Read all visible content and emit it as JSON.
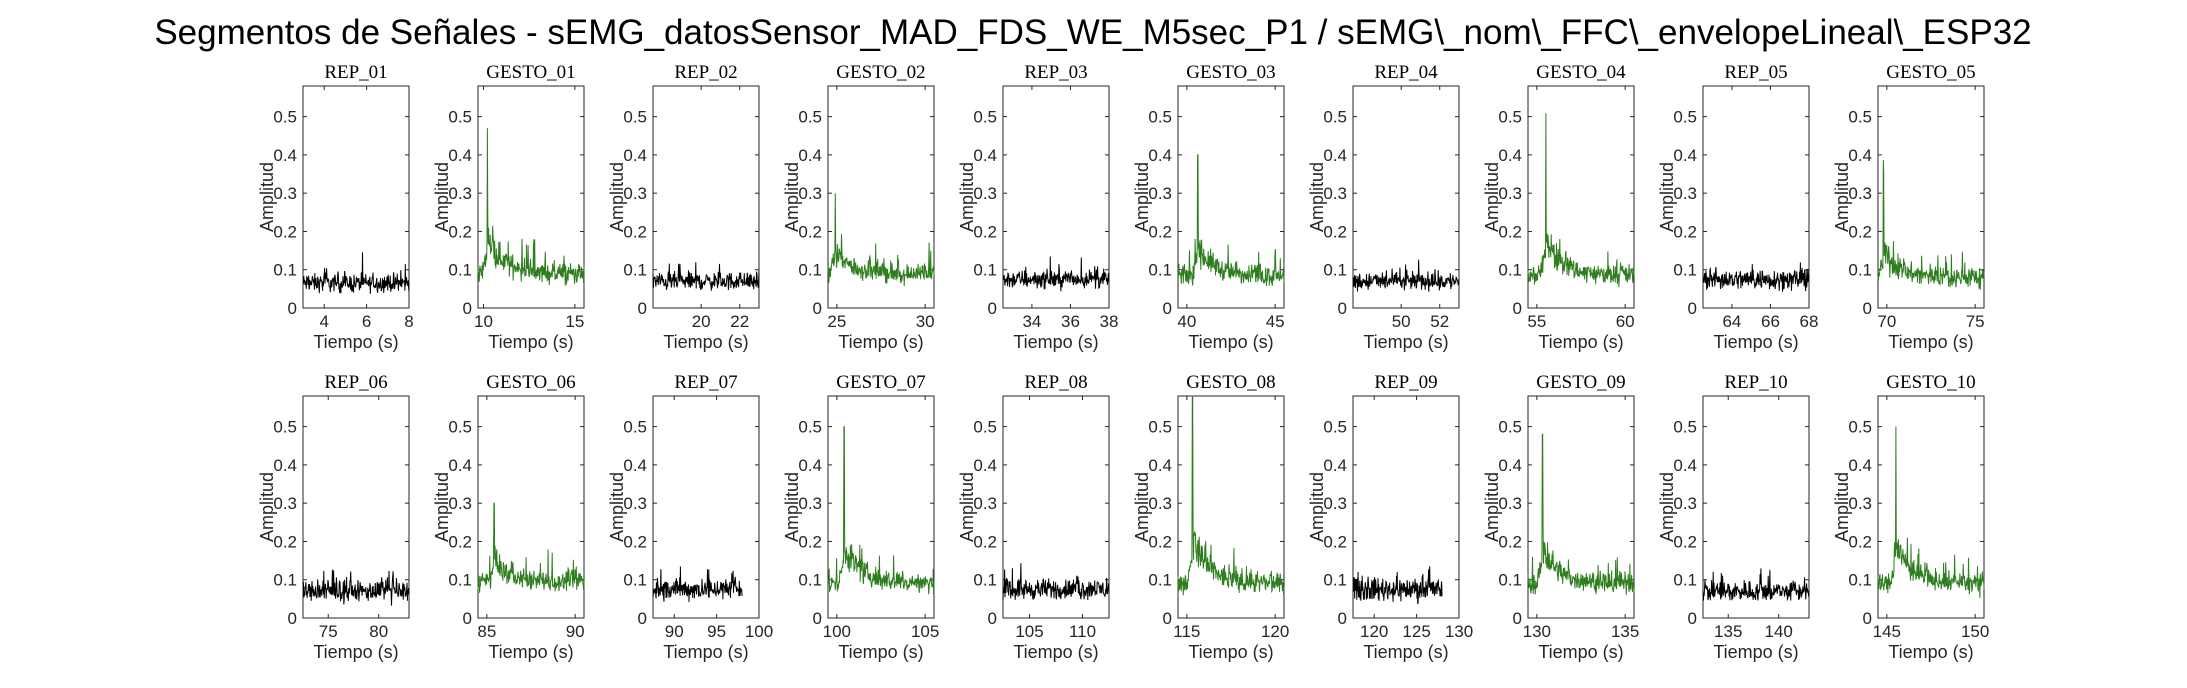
{
  "title": "Segmentos de Señales - sEMG_datosSensor_MAD_FDS_WE_M5sec_P1 / sEMG\\_nom\\_FFC\\_envelopeLineal\\_ESP32",
  "colors": {
    "rep": "#000000",
    "gesto": "#2e7d1e"
  },
  "chart_data": [
    {
      "type": "line",
      "title": "REP_01",
      "xlabel": "Tiempo (s)",
      "ylabel": "Amplitud",
      "ylim": [
        0,
        0.58
      ],
      "yticks": [
        0,
        0.1,
        0.2,
        0.3,
        0.4,
        0.5
      ],
      "xlim": [
        3,
        8
      ],
      "xticks": [
        4,
        6,
        8
      ],
      "color": "rep",
      "series": [
        {
          "kind": "rest",
          "x_range": [
            3,
            8
          ],
          "base": 0.065,
          "noise": 0.035
        }
      ]
    },
    {
      "type": "line",
      "title": "GESTO_01",
      "xlabel": "Tiempo (s)",
      "ylabel": "Amplitud",
      "ylim": [
        0,
        0.58
      ],
      "yticks": [
        0,
        0.1,
        0.2,
        0.3,
        0.4,
        0.5
      ],
      "xlim": [
        9.7,
        15.5
      ],
      "xticks": [
        10,
        15
      ],
      "color": "gesto",
      "series": [
        {
          "kind": "gesture",
          "x_range": [
            9.7,
            15.5
          ],
          "base": 0.09,
          "noise": 0.04,
          "peak_x": 10.2,
          "peak_y": 0.47
        }
      ]
    },
    {
      "type": "line",
      "title": "REP_02",
      "xlabel": "Tiempo (s)",
      "ylabel": "Amplitud",
      "ylim": [
        0,
        0.58
      ],
      "yticks": [
        0,
        0.1,
        0.2,
        0.3,
        0.4,
        0.5
      ],
      "xlim": [
        17.5,
        23
      ],
      "xticks": [
        20,
        22
      ],
      "color": "rep",
      "series": [
        {
          "kind": "rest",
          "x_range": [
            17.5,
            23
          ],
          "base": 0.07,
          "noise": 0.035
        }
      ]
    },
    {
      "type": "line",
      "title": "GESTO_02",
      "xlabel": "Tiempo (s)",
      "ylabel": "Amplitud",
      "ylim": [
        0,
        0.58
      ],
      "yticks": [
        0,
        0.1,
        0.2,
        0.3,
        0.4,
        0.5
      ],
      "xlim": [
        24.5,
        30.5
      ],
      "xticks": [
        25,
        30
      ],
      "color": "gesto",
      "series": [
        {
          "kind": "gesture",
          "x_range": [
            24.5,
            30.5
          ],
          "base": 0.09,
          "noise": 0.04,
          "peak_x": 24.9,
          "peak_y": 0.3
        }
      ]
    },
    {
      "type": "line",
      "title": "REP_03",
      "xlabel": "Tiempo (s)",
      "ylabel": "Amplitud",
      "ylim": [
        0,
        0.58
      ],
      "yticks": [
        0,
        0.1,
        0.2,
        0.3,
        0.4,
        0.5
      ],
      "xlim": [
        32.5,
        38
      ],
      "xticks": [
        34,
        36,
        38
      ],
      "color": "rep",
      "series": [
        {
          "kind": "rest",
          "x_range": [
            32.5,
            38
          ],
          "base": 0.075,
          "noise": 0.035
        }
      ]
    },
    {
      "type": "line",
      "title": "GESTO_03",
      "xlabel": "Tiempo (s)",
      "ylabel": "Amplitud",
      "ylim": [
        0,
        0.58
      ],
      "yticks": [
        0,
        0.1,
        0.2,
        0.3,
        0.4,
        0.5
      ],
      "xlim": [
        39.5,
        45.5
      ],
      "xticks": [
        40,
        45
      ],
      "color": "gesto",
      "series": [
        {
          "kind": "gesture",
          "x_range": [
            39.5,
            45.5
          ],
          "base": 0.085,
          "noise": 0.04,
          "peak_x": 40.6,
          "peak_y": 0.4
        }
      ]
    },
    {
      "type": "line",
      "title": "REP_04",
      "xlabel": "Tiempo (s)",
      "ylabel": "Amplitud",
      "ylim": [
        0,
        0.58
      ],
      "yticks": [
        0,
        0.1,
        0.2,
        0.3,
        0.4,
        0.5
      ],
      "xlim": [
        47.5,
        53
      ],
      "xticks": [
        50,
        52
      ],
      "color": "rep",
      "series": [
        {
          "kind": "rest",
          "x_range": [
            47.5,
            53
          ],
          "base": 0.07,
          "noise": 0.035
        }
      ]
    },
    {
      "type": "line",
      "title": "GESTO_04",
      "xlabel": "Tiempo (s)",
      "ylabel": "Amplitud",
      "ylim": [
        0,
        0.58
      ],
      "yticks": [
        0,
        0.1,
        0.2,
        0.3,
        0.4,
        0.5
      ],
      "xlim": [
        54.5,
        60.5
      ],
      "xticks": [
        55,
        60
      ],
      "color": "gesto",
      "series": [
        {
          "kind": "gesture",
          "x_range": [
            54.5,
            60.5
          ],
          "base": 0.085,
          "noise": 0.04,
          "peak_x": 55.5,
          "peak_y": 0.5
        }
      ]
    },
    {
      "type": "line",
      "title": "REP_05",
      "xlabel": "Tiempo (s)",
      "ylabel": "Amplitud",
      "ylim": [
        0,
        0.58
      ],
      "yticks": [
        0,
        0.1,
        0.2,
        0.3,
        0.4,
        0.5
      ],
      "xlim": [
        62.5,
        68
      ],
      "xticks": [
        64,
        66,
        68
      ],
      "color": "rep",
      "series": [
        {
          "kind": "rest",
          "x_range": [
            62.5,
            68
          ],
          "base": 0.075,
          "noise": 0.04
        }
      ]
    },
    {
      "type": "line",
      "title": "GESTO_05",
      "xlabel": "Tiempo (s)",
      "ylabel": "Amplitud",
      "ylim": [
        0,
        0.58
      ],
      "yticks": [
        0,
        0.1,
        0.2,
        0.3,
        0.4,
        0.5
      ],
      "xlim": [
        69.5,
        75.5
      ],
      "xticks": [
        70,
        75
      ],
      "color": "gesto",
      "series": [
        {
          "kind": "gesture",
          "x_range": [
            69.5,
            75.5
          ],
          "base": 0.08,
          "noise": 0.04,
          "peak_x": 69.8,
          "peak_y": 0.35
        }
      ]
    },
    {
      "type": "line",
      "title": "REP_06",
      "xlabel": "Tiempo (s)",
      "ylabel": "Amplitud",
      "ylim": [
        0,
        0.58
      ],
      "yticks": [
        0,
        0.1,
        0.2,
        0.3,
        0.4,
        0.5
      ],
      "xlim": [
        72.5,
        83
      ],
      "xticks": [
        75,
        80
      ],
      "color": "rep",
      "series": [
        {
          "kind": "rest",
          "x_range": [
            72.5,
            83
          ],
          "base": 0.07,
          "noise": 0.04
        }
      ]
    },
    {
      "type": "line",
      "title": "GESTO_06",
      "xlabel": "Tiempo (s)",
      "ylabel": "Amplitud",
      "ylim": [
        0,
        0.58
      ],
      "yticks": [
        0,
        0.1,
        0.2,
        0.3,
        0.4,
        0.5
      ],
      "xlim": [
        84.5,
        90.5
      ],
      "xticks": [
        85,
        90
      ],
      "color": "gesto",
      "series": [
        {
          "kind": "gesture",
          "x_range": [
            84.5,
            90.5
          ],
          "base": 0.095,
          "noise": 0.04,
          "peak_x": 85.4,
          "peak_y": 0.3
        }
      ]
    },
    {
      "type": "line",
      "title": "REP_07",
      "xlabel": "Tiempo (s)",
      "ylabel": "Amplitud",
      "ylim": [
        0,
        0.58
      ],
      "yticks": [
        0,
        0.1,
        0.2,
        0.3,
        0.4,
        0.5
      ],
      "xlim": [
        87.5,
        100
      ],
      "xticks": [
        90,
        95,
        100
      ],
      "color": "rep",
      "series": [
        {
          "kind": "rest",
          "x_range": [
            87.5,
            98
          ],
          "base": 0.075,
          "noise": 0.04
        }
      ]
    },
    {
      "type": "line",
      "title": "GESTO_07",
      "xlabel": "Tiempo (s)",
      "ylabel": "Amplitud",
      "ylim": [
        0,
        0.58
      ],
      "yticks": [
        0,
        0.1,
        0.2,
        0.3,
        0.4,
        0.5
      ],
      "xlim": [
        99.5,
        105.5
      ],
      "xticks": [
        100,
        105
      ],
      "color": "gesto",
      "series": [
        {
          "kind": "gesture",
          "x_range": [
            99.5,
            105.5
          ],
          "base": 0.09,
          "noise": 0.04,
          "peak_x": 100.4,
          "peak_y": 0.5
        }
      ]
    },
    {
      "type": "line",
      "title": "REP_08",
      "xlabel": "Tiempo (s)",
      "ylabel": "Amplitud",
      "ylim": [
        0,
        0.58
      ],
      "yticks": [
        0,
        0.1,
        0.2,
        0.3,
        0.4,
        0.5
      ],
      "xlim": [
        102.5,
        112.5
      ],
      "xticks": [
        105,
        110
      ],
      "color": "rep",
      "series": [
        {
          "kind": "rest",
          "x_range": [
            102.5,
            112.5
          ],
          "base": 0.075,
          "noise": 0.04
        }
      ]
    },
    {
      "type": "line",
      "title": "GESTO_08",
      "xlabel": "Tiempo (s)",
      "ylabel": "Amplitud",
      "ylim": [
        0,
        0.58
      ],
      "yticks": [
        0,
        0.1,
        0.2,
        0.3,
        0.4,
        0.5
      ],
      "xlim": [
        114.5,
        120.5
      ],
      "xticks": [
        115,
        120
      ],
      "color": "gesto",
      "series": [
        {
          "kind": "gesture",
          "x_range": [
            114.5,
            120.5
          ],
          "base": 0.09,
          "noise": 0.04,
          "peak_x": 115.3,
          "peak_y": 0.58
        }
      ]
    },
    {
      "type": "line",
      "title": "REP_09",
      "xlabel": "Tiempo (s)",
      "ylabel": "Amplitud",
      "ylim": [
        0,
        0.58
      ],
      "yticks": [
        0,
        0.1,
        0.2,
        0.3,
        0.4,
        0.5
      ],
      "xlim": [
        117.5,
        130
      ],
      "xticks": [
        120,
        125,
        130
      ],
      "color": "rep",
      "series": [
        {
          "kind": "rest",
          "x_range": [
            117.5,
            128
          ],
          "base": 0.075,
          "noise": 0.045
        }
      ]
    },
    {
      "type": "line",
      "title": "GESTO_09",
      "xlabel": "Tiempo (s)",
      "ylabel": "Amplitud",
      "ylim": [
        0,
        0.58
      ],
      "yticks": [
        0,
        0.1,
        0.2,
        0.3,
        0.4,
        0.5
      ],
      "xlim": [
        129.5,
        135.5
      ],
      "xticks": [
        130,
        135
      ],
      "color": "gesto",
      "series": [
        {
          "kind": "gesture",
          "x_range": [
            129.5,
            135.5
          ],
          "base": 0.09,
          "noise": 0.04,
          "peak_x": 130.3,
          "peak_y": 0.48
        }
      ]
    },
    {
      "type": "line",
      "title": "REP_10",
      "xlabel": "Tiempo (s)",
      "ylabel": "Amplitud",
      "ylim": [
        0,
        0.58
      ],
      "yticks": [
        0,
        0.1,
        0.2,
        0.3,
        0.4,
        0.5
      ],
      "xlim": [
        132.5,
        143
      ],
      "xticks": [
        135,
        140
      ],
      "color": "rep",
      "series": [
        {
          "kind": "rest",
          "x_range": [
            132.5,
            143
          ],
          "base": 0.07,
          "noise": 0.04
        }
      ]
    },
    {
      "type": "line",
      "title": "GESTO_10",
      "xlabel": "Tiempo (s)",
      "ylabel": "Amplitud",
      "ylim": [
        0,
        0.58
      ],
      "yticks": [
        0,
        0.1,
        0.2,
        0.3,
        0.4,
        0.5
      ],
      "xlim": [
        144.5,
        150.5
      ],
      "xticks": [
        145,
        150
      ],
      "color": "gesto",
      "series": [
        {
          "kind": "gesture",
          "x_range": [
            144.5,
            150.5
          ],
          "base": 0.09,
          "noise": 0.04,
          "peak_x": 145.5,
          "peak_y": 0.5
        }
      ]
    }
  ]
}
